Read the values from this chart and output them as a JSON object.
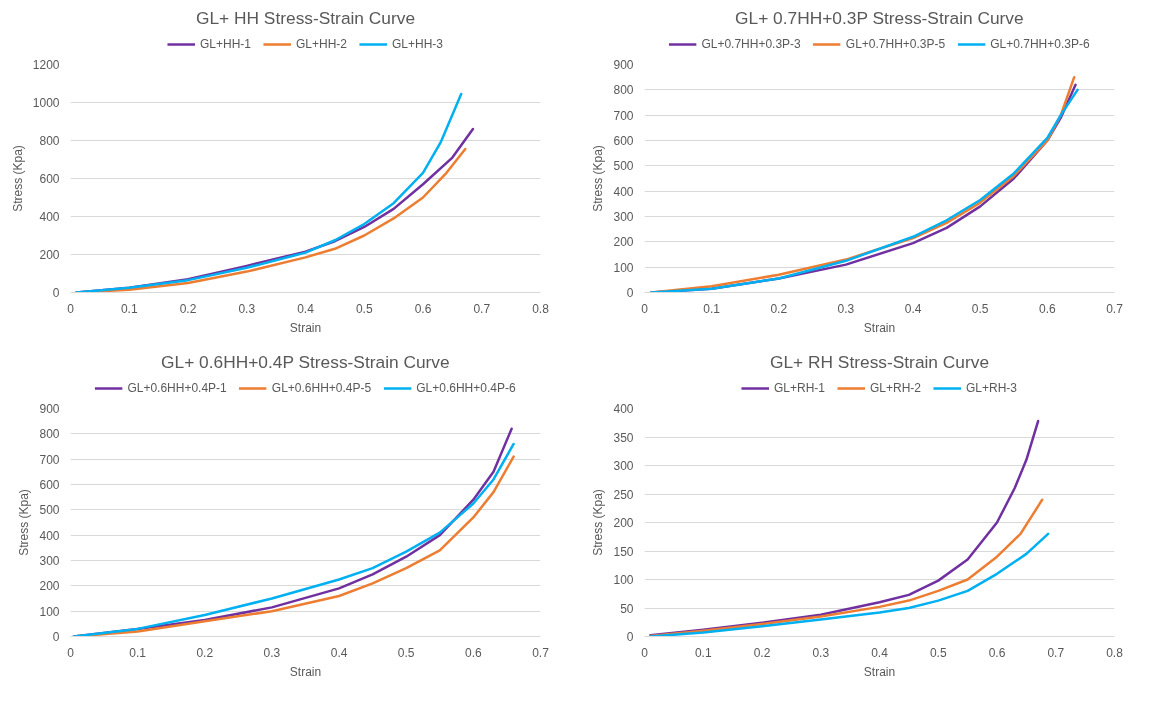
{
  "chart_data": [
    {
      "type": "line",
      "title": "GL+ HH Stress-Strain Curve",
      "xlabel": "Strain",
      "ylabel": "Stress (Kpa)",
      "xlim": [
        0,
        0.8
      ],
      "xticks": [
        0,
        0.1,
        0.2,
        0.3,
        0.4,
        0.5,
        0.6,
        0.7,
        0.8
      ],
      "ylim": [
        0,
        1200
      ],
      "yticks": [
        0,
        200,
        400,
        600,
        800,
        1000,
        1200
      ],
      "grid": "y",
      "legend": "top",
      "line_style": "solid",
      "series": [
        {
          "name": "GL+HH-1",
          "color": "#7030a0",
          "x": [
            0.01,
            0.1,
            0.2,
            0.3,
            0.4,
            0.45,
            0.5,
            0.55,
            0.6,
            0.65,
            0.685
          ],
          "values": [
            0,
            25,
            70,
            140,
            215,
            270,
            345,
            440,
            570,
            710,
            860
          ]
        },
        {
          "name": "GL+HH-2",
          "color": "#ed7d31",
          "x": [
            0.01,
            0.1,
            0.2,
            0.3,
            0.4,
            0.45,
            0.5,
            0.55,
            0.6,
            0.64,
            0.672
          ],
          "values": [
            0,
            15,
            50,
            110,
            185,
            230,
            300,
            390,
            500,
            630,
            755
          ]
        },
        {
          "name": "GL+HH-3",
          "color": "#00b0f0",
          "x": [
            0.01,
            0.1,
            0.2,
            0.3,
            0.4,
            0.45,
            0.5,
            0.55,
            0.6,
            0.63,
            0.665
          ],
          "values": [
            0,
            25,
            65,
            130,
            210,
            275,
            360,
            470,
            630,
            790,
            1045
          ]
        }
      ]
    },
    {
      "type": "line",
      "title": "GL+ 0.7HH+0.3P Stress-Strain Curve",
      "xlabel": "Strain",
      "ylabel": "Stress (Kpa)",
      "xlim": [
        0,
        0.7
      ],
      "xticks": [
        0,
        0.1,
        0.2,
        0.3,
        0.4,
        0.5,
        0.6,
        0.7
      ],
      "ylim": [
        0,
        900
      ],
      "yticks": [
        0,
        100,
        200,
        300,
        400,
        500,
        600,
        700,
        800,
        900
      ],
      "grid": "y",
      "legend": "top",
      "line_style": "solid",
      "series": [
        {
          "name": "GL+0.7HH+0.3P-3",
          "color": "#7030a0",
          "x": [
            0.01,
            0.1,
            0.2,
            0.3,
            0.4,
            0.45,
            0.5,
            0.55,
            0.6,
            0.62,
            0.642
          ],
          "values": [
            0,
            15,
            55,
            110,
            195,
            255,
            340,
            450,
            600,
            690,
            820
          ]
        },
        {
          "name": "GL+0.7HH+0.3P-5",
          "color": "#ed7d31",
          "x": [
            0.01,
            0.1,
            0.2,
            0.3,
            0.4,
            0.45,
            0.5,
            0.55,
            0.6,
            0.62,
            0.64
          ],
          "values": [
            0,
            25,
            70,
            130,
            215,
            275,
            355,
            460,
            600,
            700,
            850
          ]
        },
        {
          "name": "GL+0.7HH+0.3P-6",
          "color": "#00b0f0",
          "x": [
            0.01,
            0.1,
            0.2,
            0.3,
            0.4,
            0.45,
            0.5,
            0.55,
            0.6,
            0.62,
            0.645
          ],
          "values": [
            0,
            15,
            55,
            125,
            220,
            285,
            365,
            470,
            610,
            700,
            800
          ]
        }
      ]
    },
    {
      "type": "line",
      "title": "GL+ 0.6HH+0.4P Stress-Strain Curve",
      "xlabel": "Strain",
      "ylabel": "Stress (Kpa)",
      "xlim": [
        0,
        0.7
      ],
      "xticks": [
        0,
        0.1,
        0.2,
        0.3,
        0.4,
        0.5,
        0.6,
        0.7
      ],
      "ylim": [
        0,
        900
      ],
      "yticks": [
        0,
        100,
        200,
        300,
        400,
        500,
        600,
        700,
        800,
        900
      ],
      "grid": "y",
      "legend": "top",
      "line_style": "solid",
      "series": [
        {
          "name": "GL+0.6HH+0.4P-1",
          "color": "#7030a0",
          "x": [
            0.005,
            0.1,
            0.2,
            0.3,
            0.4,
            0.45,
            0.5,
            0.55,
            0.6,
            0.63,
            0.657
          ],
          "values": [
            0,
            30,
            65,
            115,
            190,
            245,
            315,
            400,
            540,
            650,
            820
          ]
        },
        {
          "name": "GL+0.6HH+0.4P-5",
          "color": "#ed7d31",
          "x": [
            0.005,
            0.1,
            0.2,
            0.3,
            0.4,
            0.45,
            0.5,
            0.55,
            0.6,
            0.63,
            0.66
          ],
          "values": [
            0,
            20,
            60,
            100,
            160,
            210,
            270,
            340,
            470,
            570,
            710
          ]
        },
        {
          "name": "GL+0.6HH+0.4P-6",
          "color": "#00b0f0",
          "x": [
            0.005,
            0.1,
            0.2,
            0.3,
            0.4,
            0.45,
            0.5,
            0.55,
            0.6,
            0.63,
            0.66
          ],
          "values": [
            0,
            30,
            85,
            150,
            225,
            270,
            335,
            410,
            525,
            620,
            760
          ]
        }
      ]
    },
    {
      "type": "line",
      "title": "GL+ RH Stress-Strain Curve",
      "xlabel": "Strain",
      "ylabel": "Stress (Kpa)",
      "xlim": [
        0,
        0.8
      ],
      "xticks": [
        0,
        0.1,
        0.2,
        0.3,
        0.4,
        0.5,
        0.6,
        0.7,
        0.8
      ],
      "ylim": [
        0,
        400
      ],
      "yticks": [
        0,
        50,
        100,
        150,
        200,
        250,
        300,
        350,
        400
      ],
      "grid": "y",
      "legend": "top",
      "line_style": "solid",
      "series": [
        {
          "name": "GL+RH-1",
          "color": "#7030a0",
          "x": [
            0.01,
            0.1,
            0.2,
            0.3,
            0.4,
            0.45,
            0.5,
            0.55,
            0.6,
            0.63,
            0.65,
            0.67
          ],
          "values": [
            2,
            12,
            24,
            38,
            60,
            73,
            98,
            135,
            200,
            260,
            310,
            378
          ]
        },
        {
          "name": "GL+RH-2",
          "color": "#ed7d31",
          "x": [
            0.01,
            0.1,
            0.2,
            0.3,
            0.4,
            0.45,
            0.5,
            0.55,
            0.6,
            0.64,
            0.677
          ],
          "values": [
            1,
            10,
            22,
            35,
            52,
            63,
            80,
            100,
            140,
            180,
            240
          ]
        },
        {
          "name": "GL+RH-3",
          "color": "#00b0f0",
          "x": [
            0.01,
            0.1,
            0.2,
            0.3,
            0.4,
            0.45,
            0.5,
            0.55,
            0.6,
            0.65,
            0.687
          ],
          "values": [
            0,
            7,
            18,
            30,
            42,
            50,
            63,
            80,
            110,
            145,
            180
          ]
        }
      ]
    }
  ]
}
